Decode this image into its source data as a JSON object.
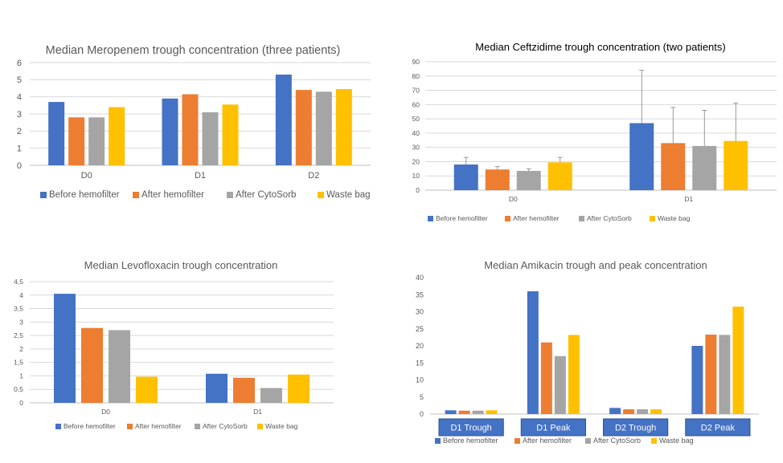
{
  "colors": {
    "before": "#4472C4",
    "after": "#ED7D31",
    "cytosorb": "#A5A5A5",
    "waste": "#FFC000",
    "grid": "#D9D9D9",
    "axis_text": "#595959",
    "title_text": "#404040",
    "label_box": "#4472C4"
  },
  "chart_data": [
    {
      "type": "bar",
      "title": "Median Meropenem trough concentration (three patients)",
      "categories": [
        "D0",
        "D1",
        "D2"
      ],
      "ylim": [
        0,
        6
      ],
      "yticks": [
        "0",
        "1",
        "2",
        "3",
        "4",
        "5",
        "6"
      ],
      "grid": true,
      "legend_position": "bottom",
      "series": [
        {
          "name": "Before hemofilter",
          "values": [
            3.7,
            3.9,
            5.3
          ]
        },
        {
          "name": "After hemofilter",
          "values": [
            2.8,
            4.15,
            4.4
          ]
        },
        {
          "name": "After CytoSorb",
          "values": [
            2.8,
            3.1,
            4.3
          ]
        },
        {
          "name": "Waste bag",
          "values": [
            3.4,
            3.55,
            4.45
          ]
        }
      ]
    },
    {
      "type": "bar",
      "title": "Median Ceftzidime trough concentration (two patients)",
      "categories": [
        "D0",
        "D1"
      ],
      "ylim": [
        0,
        90
      ],
      "yticks": [
        "0",
        "10",
        "20",
        "30",
        "40",
        "50",
        "60",
        "70",
        "80",
        "90"
      ],
      "grid": true,
      "legend_position": "bottom",
      "series": [
        {
          "name": "Before hemofilter",
          "values": [
            18,
            47
          ],
          "error_upper": [
            23,
            84
          ]
        },
        {
          "name": "After hemofilter",
          "values": [
            14.5,
            33
          ],
          "error_upper": [
            16.5,
            58
          ]
        },
        {
          "name": "After CytoSorb",
          "values": [
            13.5,
            31
          ],
          "error_upper": [
            15,
            56
          ]
        },
        {
          "name": "Waste bag",
          "values": [
            19.5,
            34.5
          ],
          "error_upper": [
            23,
            61
          ]
        }
      ]
    },
    {
      "type": "bar",
      "title": "Median Levofloxacin trough concentration",
      "categories": [
        "D0",
        "D1"
      ],
      "ylim": [
        0,
        4.5
      ],
      "yticks": [
        "0",
        "0,5",
        "1",
        "1,5",
        "2",
        "2,5",
        "3",
        "3,5",
        "4",
        "4,5"
      ],
      "grid": true,
      "legend_position": "bottom",
      "series": [
        {
          "name": "Before hemofilter",
          "values": [
            4.05,
            1.08
          ]
        },
        {
          "name": "After hemofilter",
          "values": [
            2.78,
            0.93
          ]
        },
        {
          "name": "After CytoSorb",
          "values": [
            2.7,
            0.55
          ]
        },
        {
          "name": "Waste bag",
          "values": [
            0.97,
            1.05
          ]
        }
      ]
    },
    {
      "type": "bar",
      "title": "Median Amikacin trough and peak concentration",
      "categories": [
        "D1 Trough",
        "D1 Peak",
        "D2 Trough",
        "D2 Peak"
      ],
      "ylim": [
        0,
        40
      ],
      "yticks": [
        "0",
        "5",
        "10",
        "15",
        "20",
        "25",
        "30",
        "35",
        "40"
      ],
      "grid": true,
      "legend_position": "bottom",
      "series": [
        {
          "name": "Before hemofilter",
          "values": [
            1.1,
            36,
            1.8,
            20
          ]
        },
        {
          "name": "After hemofilter",
          "values": [
            1.0,
            21,
            1.4,
            23.3
          ]
        },
        {
          "name": "After CytoSorb",
          "values": [
            1.0,
            17,
            1.4,
            23.2
          ]
        },
        {
          "name": "Waste bag",
          "values": [
            1.1,
            23.2,
            1.4,
            31.5
          ]
        }
      ]
    }
  ]
}
